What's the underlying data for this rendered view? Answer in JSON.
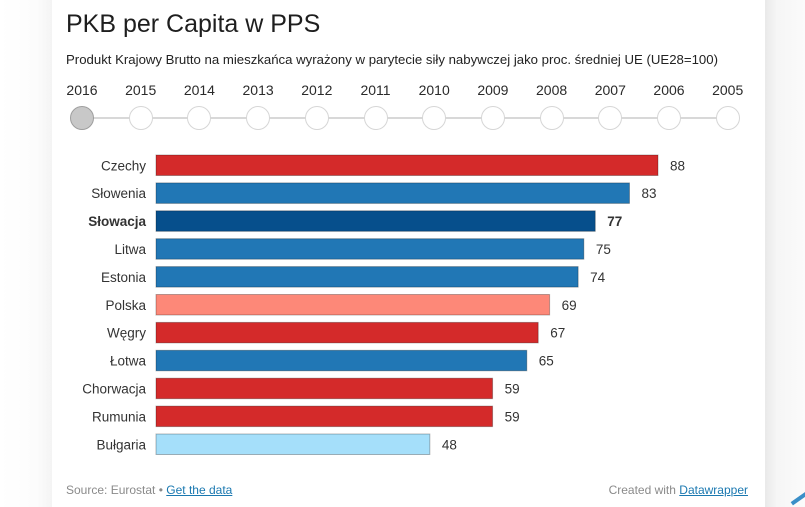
{
  "header": {
    "title": "PKB per Capita w PPS",
    "subtitle": "Produkt Krajowy Brutto na mieszkańca wyrażony w parytecie siły nabywczej jako proc. średniej UE (UE28=100)"
  },
  "timeline": {
    "years": [
      "2016",
      "2015",
      "2014",
      "2013",
      "2012",
      "2011",
      "2010",
      "2009",
      "2008",
      "2007",
      "2006",
      "2005"
    ],
    "selected": "2016"
  },
  "footer": {
    "source_label": "Source: Eurostat",
    "separator": "•",
    "get_data_link": "Get the data",
    "created_with_label": "Created with",
    "datawrapper_link": "Datawrapper"
  },
  "colors": {
    "red": "#d42a2a",
    "blue": "#2177b5",
    "dark_blue": "#064f8c",
    "salmon": "#fd8878",
    "light_blue": "#a5dffa"
  },
  "chart_data": {
    "type": "bar",
    "orientation": "horizontal",
    "title": "PKB per Capita w PPS",
    "subtitle": "Produkt Krajowy Brutto na mieszkańca wyrażony w parytecie siły nabywczej jako proc. średniej UE (UE28=100)",
    "year": "2016",
    "categories": [
      "Czechy",
      "Słowenia",
      "Słowacja",
      "Litwa",
      "Estonia",
      "Polska",
      "Węgry",
      "Łotwa",
      "Chorwacja",
      "Rumunia",
      "Bułgaria"
    ],
    "values": [
      88,
      83,
      77,
      75,
      74,
      69,
      67,
      65,
      59,
      59,
      48
    ],
    "bar_colors": [
      "#d42a2a",
      "#2177b5",
      "#064f8c",
      "#2177b5",
      "#2177b5",
      "#fd8878",
      "#d42a2a",
      "#2177b5",
      "#d42a2a",
      "#d42a2a",
      "#a5dffa"
    ],
    "highlighted": [
      "Słowacja"
    ],
    "xlabel": "",
    "ylabel": "",
    "xlim": [
      0,
      88
    ],
    "grid": false,
    "legend": "none",
    "data_labels": true
  }
}
